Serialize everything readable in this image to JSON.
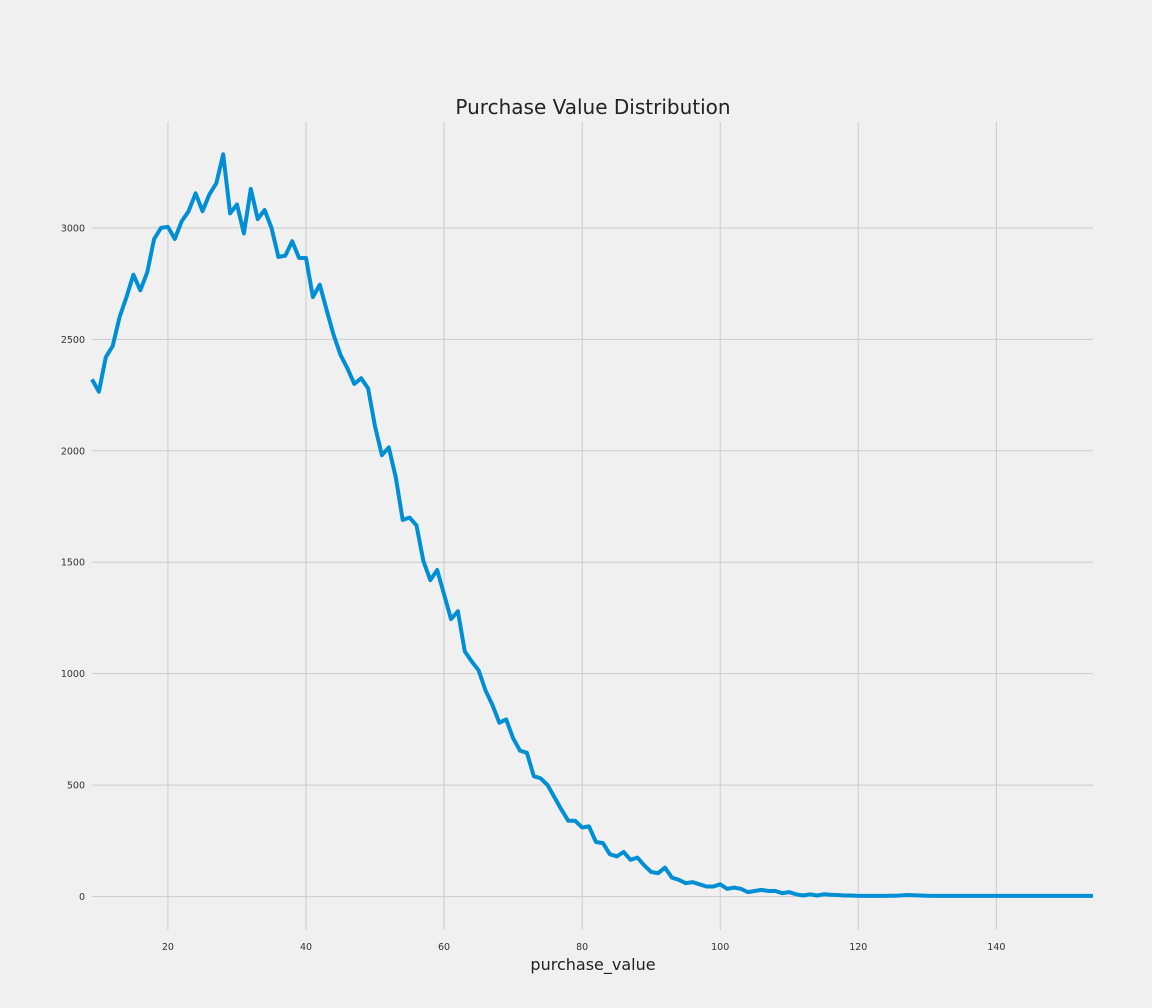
{
  "chart_data": {
    "type": "line",
    "title": "Purchase Value Distribution",
    "xlabel": "purchase_value",
    "ylabel": "",
    "xlim": [
      9,
      154
    ],
    "ylim": [
      -150,
      3475
    ],
    "xticks": [
      20,
      40,
      60,
      80,
      100,
      120,
      140
    ],
    "yticks": [
      0,
      500,
      1000,
      1500,
      2000,
      2500,
      3000
    ],
    "grid": true,
    "colors": {
      "line": "#008fd5",
      "background": "#f0f0f0",
      "grid": "#cbcbcb"
    },
    "x": [
      9,
      10,
      11,
      12,
      13,
      14,
      15,
      16,
      17,
      18,
      19,
      20,
      21,
      22,
      23,
      24,
      25,
      26,
      27,
      28,
      29,
      30,
      31,
      32,
      33,
      34,
      35,
      36,
      37,
      38,
      39,
      40,
      41,
      42,
      43,
      44,
      45,
      46,
      47,
      48,
      49,
      50,
      51,
      52,
      53,
      54,
      55,
      56,
      57,
      58,
      59,
      60,
      61,
      62,
      63,
      64,
      65,
      66,
      67,
      68,
      69,
      70,
      71,
      72,
      73,
      74,
      75,
      76,
      77,
      78,
      79,
      80,
      81,
      82,
      83,
      84,
      85,
      86,
      87,
      88,
      89,
      90,
      91,
      92,
      93,
      94,
      95,
      96,
      97,
      98,
      99,
      100,
      101,
      102,
      103,
      104,
      105,
      106,
      107,
      108,
      109,
      110,
      111,
      112,
      113,
      114,
      115,
      116,
      117,
      118,
      119,
      120,
      121,
      122,
      123,
      124,
      125,
      126,
      127,
      128,
      129,
      130,
      131,
      132,
      133,
      134,
      135,
      136,
      137,
      138,
      139,
      140,
      141,
      142,
      143,
      144,
      145,
      146,
      147,
      148,
      149,
      150,
      151,
      152,
      153,
      154
    ],
    "series": [
      {
        "values": [
          2320,
          2265,
          2420,
          2470,
          2600,
          2690,
          2790,
          2720,
          2800,
          2950,
          3000,
          3005,
          2950,
          3030,
          3075,
          3155,
          3075,
          3150,
          3200,
          3330,
          3065,
          3105,
          2975,
          3175,
          3040,
          3080,
          3000,
          2870,
          2875,
          2940,
          2865,
          2865,
          2690,
          2745,
          2630,
          2520,
          2430,
          2370,
          2300,
          2325,
          2280,
          2110,
          1980,
          2015,
          1880,
          1690,
          1700,
          1665,
          1505,
          1420,
          1465,
          1355,
          1245,
          1280,
          1100,
          1055,
          1015,
          925,
          860,
          780,
          795,
          710,
          655,
          645,
          540,
          530,
          500,
          445,
          390,
          340,
          340,
          310,
          315,
          245,
          240,
          190,
          180,
          200,
          165,
          175,
          140,
          110,
          105,
          130,
          85,
          75,
          60,
          65,
          55,
          45,
          45,
          55,
          35,
          40,
          35,
          20,
          25,
          30,
          25,
          25,
          15,
          20,
          10,
          5,
          10,
          5,
          10,
          8,
          7,
          5,
          5,
          3,
          3,
          3,
          3,
          3,
          4,
          5,
          7,
          6,
          5,
          4,
          3,
          3,
          3,
          3,
          3,
          3,
          3,
          3,
          3,
          3,
          3,
          3,
          3,
          3,
          3,
          3,
          3,
          3,
          3,
          3,
          3,
          3,
          3,
          3
        ]
      }
    ]
  }
}
